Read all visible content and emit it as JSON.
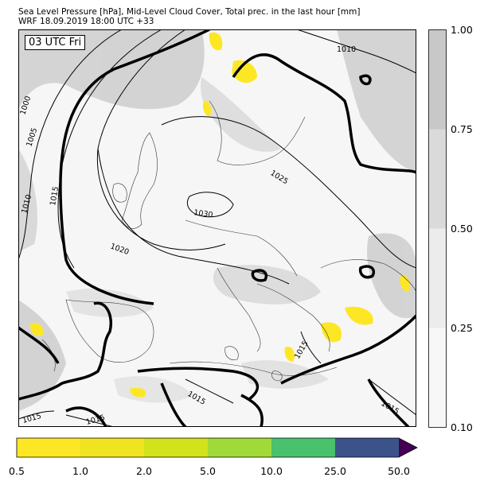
{
  "title_line1": "Sea Level Pressure [hPa], Mid-Level Cloud Cover, Total prec. in the last hour [mm]",
  "title_line2": "WRF 18.09.2019 18:00 UTC +33",
  "time_label": "03 UTC Fri",
  "cloud_colorbar": {
    "ticks": [
      "1.00",
      "0.75",
      "0.50",
      "0.25",
      "0.10"
    ],
    "colors": [
      "#c8c8c8",
      "#dadada",
      "#ececec",
      "#f7f7f7"
    ]
  },
  "precip_colorbar": {
    "ticks": [
      "0.5",
      "1.0",
      "2.0",
      "5.0",
      "10.0",
      "25.0",
      "50.0"
    ],
    "colors": [
      "#fde725",
      "#f0e31f",
      "#d2e21b",
      "#a0da39",
      "#4ac16d",
      "#2ab47c",
      "#3b528b"
    ],
    "extend_color": "#440154"
  },
  "isobar_labels": [
    "1010",
    "1000",
    "1005",
    "1010",
    "1015",
    "1025",
    "1030",
    "1020",
    "1015",
    "1015",
    "1015",
    "1015",
    "1015"
  ]
}
